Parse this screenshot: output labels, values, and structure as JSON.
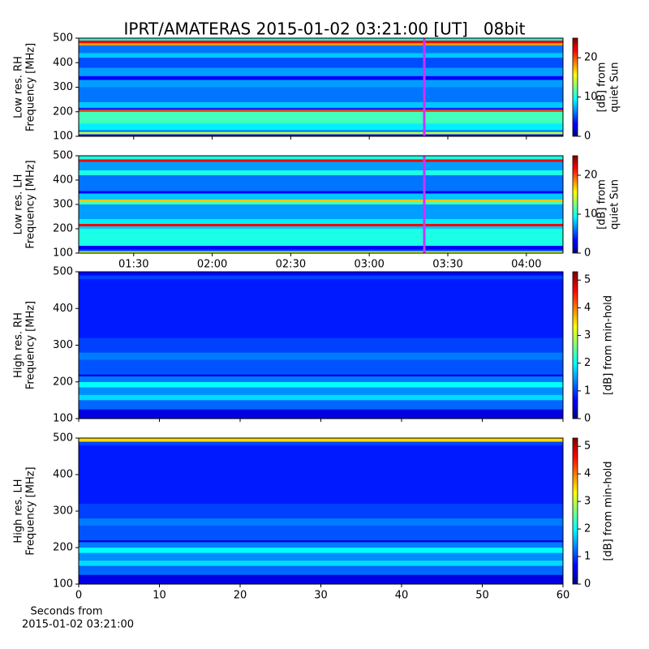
{
  "title": "IPRT/AMATERAS 2015-01-02 03:21:00 [UT]   08bit",
  "chart_data": [
    {
      "type": "heatmap",
      "colormap": "jet",
      "ylabel": [
        "Low res. RH",
        "Frequency [MHz]"
      ],
      "xlim": [
        69,
        254
      ],
      "xticks": [
        {
          "value": 90,
          "label": "01:30"
        },
        {
          "value": 120,
          "label": "02:00"
        },
        {
          "value": 150,
          "label": "02:30"
        },
        {
          "value": 180,
          "label": "03:00"
        },
        {
          "value": 210,
          "label": "03:30"
        },
        {
          "value": 240,
          "label": "04:00"
        }
      ],
      "xtick_labels": false,
      "ylim": [
        100,
        500
      ],
      "yticks": [
        100,
        200,
        300,
        400,
        500
      ],
      "y_edges": [
        100,
        108,
        118,
        125,
        150,
        200,
        208,
        216,
        240,
        300,
        330,
        345,
        380,
        420,
        440,
        470,
        480,
        490,
        500
      ],
      "values": [
        3,
        14,
        6,
        9,
        11,
        20,
        4,
        8,
        6,
        7,
        3,
        7,
        5,
        8,
        6,
        18,
        22,
        10
      ],
      "clim": [
        0,
        25
      ],
      "cticks": [
        0,
        10,
        20
      ],
      "clabel": [
        "[dB] from",
        "quiet Sun"
      ],
      "marker_x": 201,
      "marker_color": "#cc33ff"
    },
    {
      "type": "heatmap",
      "colormap": "jet",
      "ylabel": [
        "Low res. LH",
        "Frequency [MHz]"
      ],
      "xlim": [
        69,
        254
      ],
      "xticks": [
        {
          "value": 90,
          "label": "01:30"
        },
        {
          "value": 120,
          "label": "02:00"
        },
        {
          "value": 150,
          "label": "02:30"
        },
        {
          "value": 180,
          "label": "03:00"
        },
        {
          "value": 210,
          "label": "03:30"
        },
        {
          "value": 240,
          "label": "04:00"
        }
      ],
      "xtick_labels": true,
      "ylim": [
        100,
        500
      ],
      "yticks": [
        100,
        200,
        300,
        400,
        500
      ],
      "y_edges": [
        100,
        108,
        115,
        130,
        200,
        210,
        220,
        240,
        300,
        310,
        320,
        345,
        355,
        420,
        440,
        475,
        485,
        500
      ],
      "values": [
        14,
        5,
        3,
        10,
        8,
        22,
        9,
        7,
        11,
        17,
        8,
        3,
        6,
        10,
        7,
        22,
        10
      ],
      "clim": [
        0,
        25
      ],
      "cticks": [
        0,
        10,
        20
      ],
      "clabel": [
        "[dB] from",
        "quiet Sun"
      ],
      "marker_x": 201,
      "marker_color": "#cc33ff"
    },
    {
      "type": "heatmap",
      "colormap": "jet",
      "ylabel": [
        "High res. RH",
        "Frequency [MHz]"
      ],
      "xlim": [
        0,
        60
      ],
      "xticks": [
        0,
        10,
        20,
        30,
        40,
        50,
        60
      ],
      "xtick_labels": false,
      "ylim": [
        100,
        500
      ],
      "yticks": [
        100,
        200,
        300,
        400,
        500
      ],
      "y_edges": [
        100,
        125,
        150,
        165,
        185,
        200,
        215,
        220,
        260,
        280,
        320,
        480,
        490,
        500
      ],
      "values": [
        0.5,
        1.2,
        1.8,
        1.4,
        2,
        1.3,
        0.5,
        1.1,
        1.3,
        1,
        0.8,
        1,
        0.7
      ],
      "clim": [
        0,
        5.3
      ],
      "cticks": [
        0,
        1,
        2,
        3,
        4,
        5
      ],
      "clabel": [
        "[dB] from min-hold"
      ]
    },
    {
      "type": "heatmap",
      "colormap": "jet",
      "ylabel": [
        "High res. LH",
        "Frequency [MHz]"
      ],
      "xlim": [
        0,
        60
      ],
      "xticks": [
        0,
        10,
        20,
        30,
        40,
        50,
        60
      ],
      "xtick_labels": true,
      "xlabel": [
        "Seconds from",
        "2015-01-02 03:21:00"
      ],
      "ylim": [
        100,
        500
      ],
      "yticks": [
        100,
        200,
        300,
        400,
        500
      ],
      "y_edges": [
        100,
        125,
        150,
        165,
        185,
        200,
        215,
        220,
        260,
        280,
        320,
        480,
        490,
        500
      ],
      "values": [
        0.5,
        1.2,
        1.8,
        1.4,
        2,
        1.3,
        0.5,
        1.1,
        1.3,
        1,
        0.8,
        1,
        3.5
      ],
      "clim": [
        0,
        5.3
      ],
      "cticks": [
        0,
        1,
        2,
        3,
        4,
        5
      ],
      "clabel": [
        "[dB] from min-hold"
      ]
    }
  ]
}
